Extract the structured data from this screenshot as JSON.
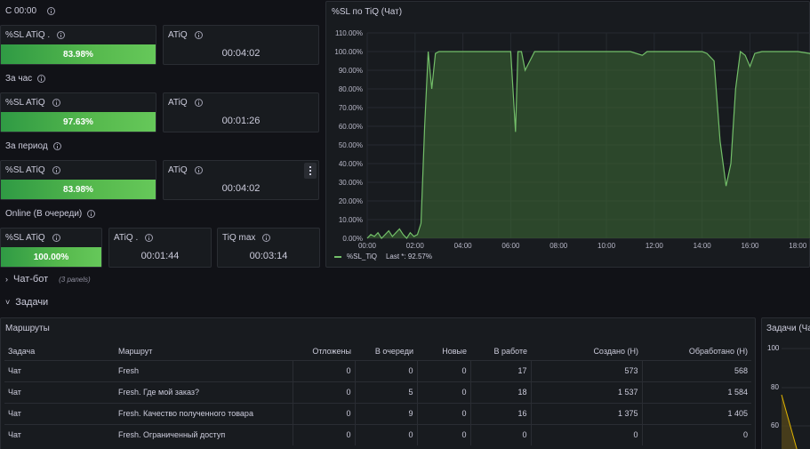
{
  "rows": {
    "row1": "С 00:00",
    "row2": "За час",
    "row3": "За период",
    "row4": "Online (В очереди)"
  },
  "stats": {
    "s1_sl_label": "%SL ATiQ .",
    "s1_sl_value": "83.98%",
    "s1_atiq_label": "ATiQ",
    "s1_atiq_value": "00:04:02",
    "s2_sl_label": "%SL ATiQ",
    "s2_sl_value": "97.63%",
    "s2_atiq_label": "ATiQ",
    "s2_atiq_value": "00:01:26",
    "s3_sl_label": "%SL ATiQ",
    "s3_sl_value": "83.98%",
    "s3_atiq_label": "ATiQ",
    "s3_atiq_value": "00:04:02",
    "s4_sl_label": "%SL ATiQ",
    "s4_sl_value": "100.00%",
    "s4_atiq_label": "ATiQ .",
    "s4_atiq_value": "00:01:44",
    "s4_tiq_label": "TiQ max",
    "s4_tiq_value": "00:03:14"
  },
  "chart_panel": {
    "title": "%SL по TiQ (Чат)",
    "legend_name": "%SL_TiQ",
    "legend_last": "Last *: 92.57%"
  },
  "chart_data": {
    "type": "area",
    "title": "%SL по TiQ (Чат)",
    "ylim": [
      0,
      110
    ],
    "y_ticks": [
      "0.00%",
      "10.00%",
      "20.00%",
      "30.00%",
      "40.00%",
      "50.00%",
      "60.00%",
      "70.00%",
      "80.00%",
      "90.00%",
      "100.00%",
      "110.00%"
    ],
    "x_ticks": [
      "00:00",
      "02:00",
      "04:00",
      "06:00",
      "08:00",
      "10:00",
      "12:00",
      "14:00",
      "16:00",
      "18:00"
    ],
    "series": [
      {
        "name": "%SL_TiQ",
        "color": "#73bf69",
        "x": [
          0,
          0.15,
          0.3,
          0.45,
          0.6,
          0.75,
          0.9,
          1.05,
          1.2,
          1.35,
          1.5,
          1.65,
          1.8,
          1.95,
          2.1,
          2.25,
          2.4,
          2.55,
          2.7,
          2.85,
          3.0,
          3.5,
          4.0,
          4.5,
          5.0,
          5.5,
          5.8,
          6.0,
          6.2,
          6.3,
          6.45,
          6.6,
          7.0,
          8.0,
          9.0,
          10.0,
          11.0,
          11.5,
          11.7,
          12.0,
          13.0,
          13.5,
          14.0,
          14.2,
          14.5,
          14.75,
          15.0,
          15.2,
          15.4,
          15.6,
          15.8,
          16.0,
          16.2,
          16.5,
          17.0,
          17.5,
          18.0,
          18.5,
          18.8
        ],
        "values": [
          0,
          2,
          1,
          3,
          0,
          2,
          4,
          1,
          3,
          5,
          2,
          0,
          3,
          1,
          2,
          8,
          60,
          100,
          80,
          99,
          100,
          100,
          100,
          100,
          100,
          100,
          100,
          100,
          57,
          100,
          100,
          90,
          100,
          100,
          100,
          100,
          100,
          98,
          100,
          100,
          100,
          100,
          100,
          99,
          95,
          52,
          28,
          40,
          80,
          100,
          98,
          92,
          99,
          100,
          100,
          100,
          100,
          99,
          93
        ]
      }
    ]
  },
  "sections": {
    "chatbot": "Чат-бот",
    "chatbot_panels": "(3 panels)",
    "tasks": "Задачи"
  },
  "routes": {
    "title": "Маршруты",
    "columns": [
      "Задача",
      "Маршрут",
      "Отложены",
      "В очереди",
      "Новые",
      "В работе",
      "Создано (Н)",
      "Обработано (Н)"
    ],
    "rows": [
      [
        "Чат",
        "Fresh",
        "0",
        "0",
        "0",
        "17",
        "573",
        "568"
      ],
      [
        "Чат",
        "Fresh. Где мой заказ?",
        "0",
        "5",
        "0",
        "18",
        "1 537",
        "1 584"
      ],
      [
        "Чат",
        "Fresh. Качество полученного товара",
        "0",
        "9",
        "0",
        "16",
        "1 375",
        "1 405"
      ],
      [
        "Чат",
        "Fresh. Ограниченный доступ",
        "0",
        "0",
        "0",
        "0",
        "0",
        "0"
      ]
    ]
  },
  "side_panel": {
    "title": "Задачи (Ча",
    "ticks": [
      "100",
      "80",
      "60"
    ]
  }
}
